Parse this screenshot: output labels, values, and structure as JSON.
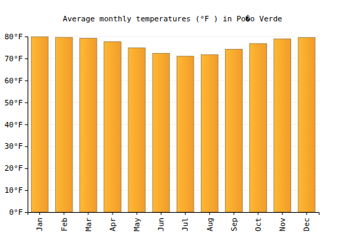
{
  "chart_data": {
    "type": "bar",
    "title": "Average monthly temperatures (°F ) in Po�o Verde",
    "categories": [
      "Jan",
      "Feb",
      "Mar",
      "Apr",
      "May",
      "Jun",
      "Jul",
      "Aug",
      "Sep",
      "Oct",
      "Nov",
      "Dec"
    ],
    "values": [
      79.9,
      79.6,
      79.2,
      77.6,
      74.8,
      72.3,
      71.0,
      71.7,
      74.2,
      76.8,
      78.9,
      79.5
    ],
    "color": "#faa22c",
    "ylim": [
      0,
      80
    ],
    "yticks": [
      {
        "value": 0,
        "label": "0°F"
      },
      {
        "value": 10,
        "label": "10°F"
      },
      {
        "value": 20,
        "label": "20°F"
      },
      {
        "value": 30,
        "label": "30°F"
      },
      {
        "value": 40,
        "label": "40°F"
      },
      {
        "value": 50,
        "label": "50°F"
      },
      {
        "value": 60,
        "label": "60°F"
      },
      {
        "value": 70,
        "label": "70°F"
      },
      {
        "value": 80,
        "label": "80°F"
      }
    ],
    "grid": true
  }
}
